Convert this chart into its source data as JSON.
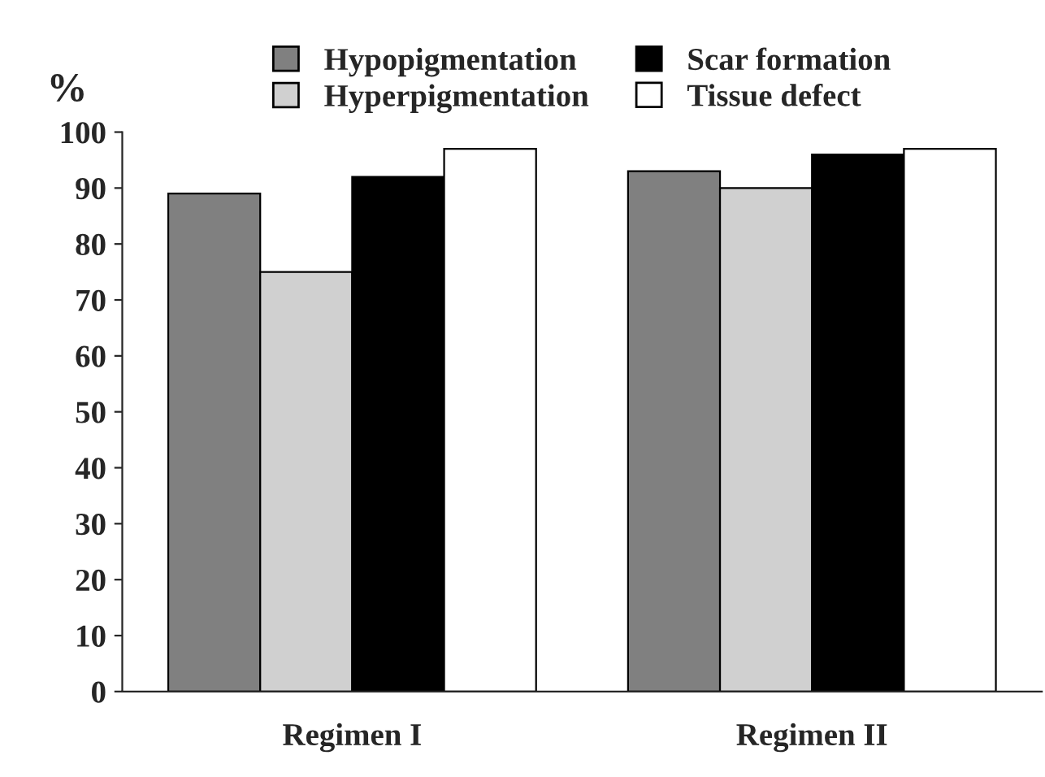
{
  "chart_data": {
    "type": "bar",
    "ylabel": "%",
    "categories": [
      "Regimen I",
      "Regimen II"
    ],
    "series": [
      {
        "name": "Hypopigmentation",
        "color": "#808080",
        "values": [
          89,
          93
        ]
      },
      {
        "name": "Hyperpigmentation",
        "color": "#d0d0d0",
        "values": [
          75,
          90
        ]
      },
      {
        "name": "Scar formation",
        "color": "#000000",
        "values": [
          92,
          96
        ]
      },
      {
        "name": "Tissue defect",
        "color": "#ffffff",
        "values": [
          97,
          97
        ]
      }
    ],
    "ylim": [
      0,
      100
    ],
    "yticks": [
      0,
      10,
      20,
      30,
      40,
      50,
      60,
      70,
      80,
      90,
      100
    ],
    "grid": false,
    "legend": "top"
  }
}
